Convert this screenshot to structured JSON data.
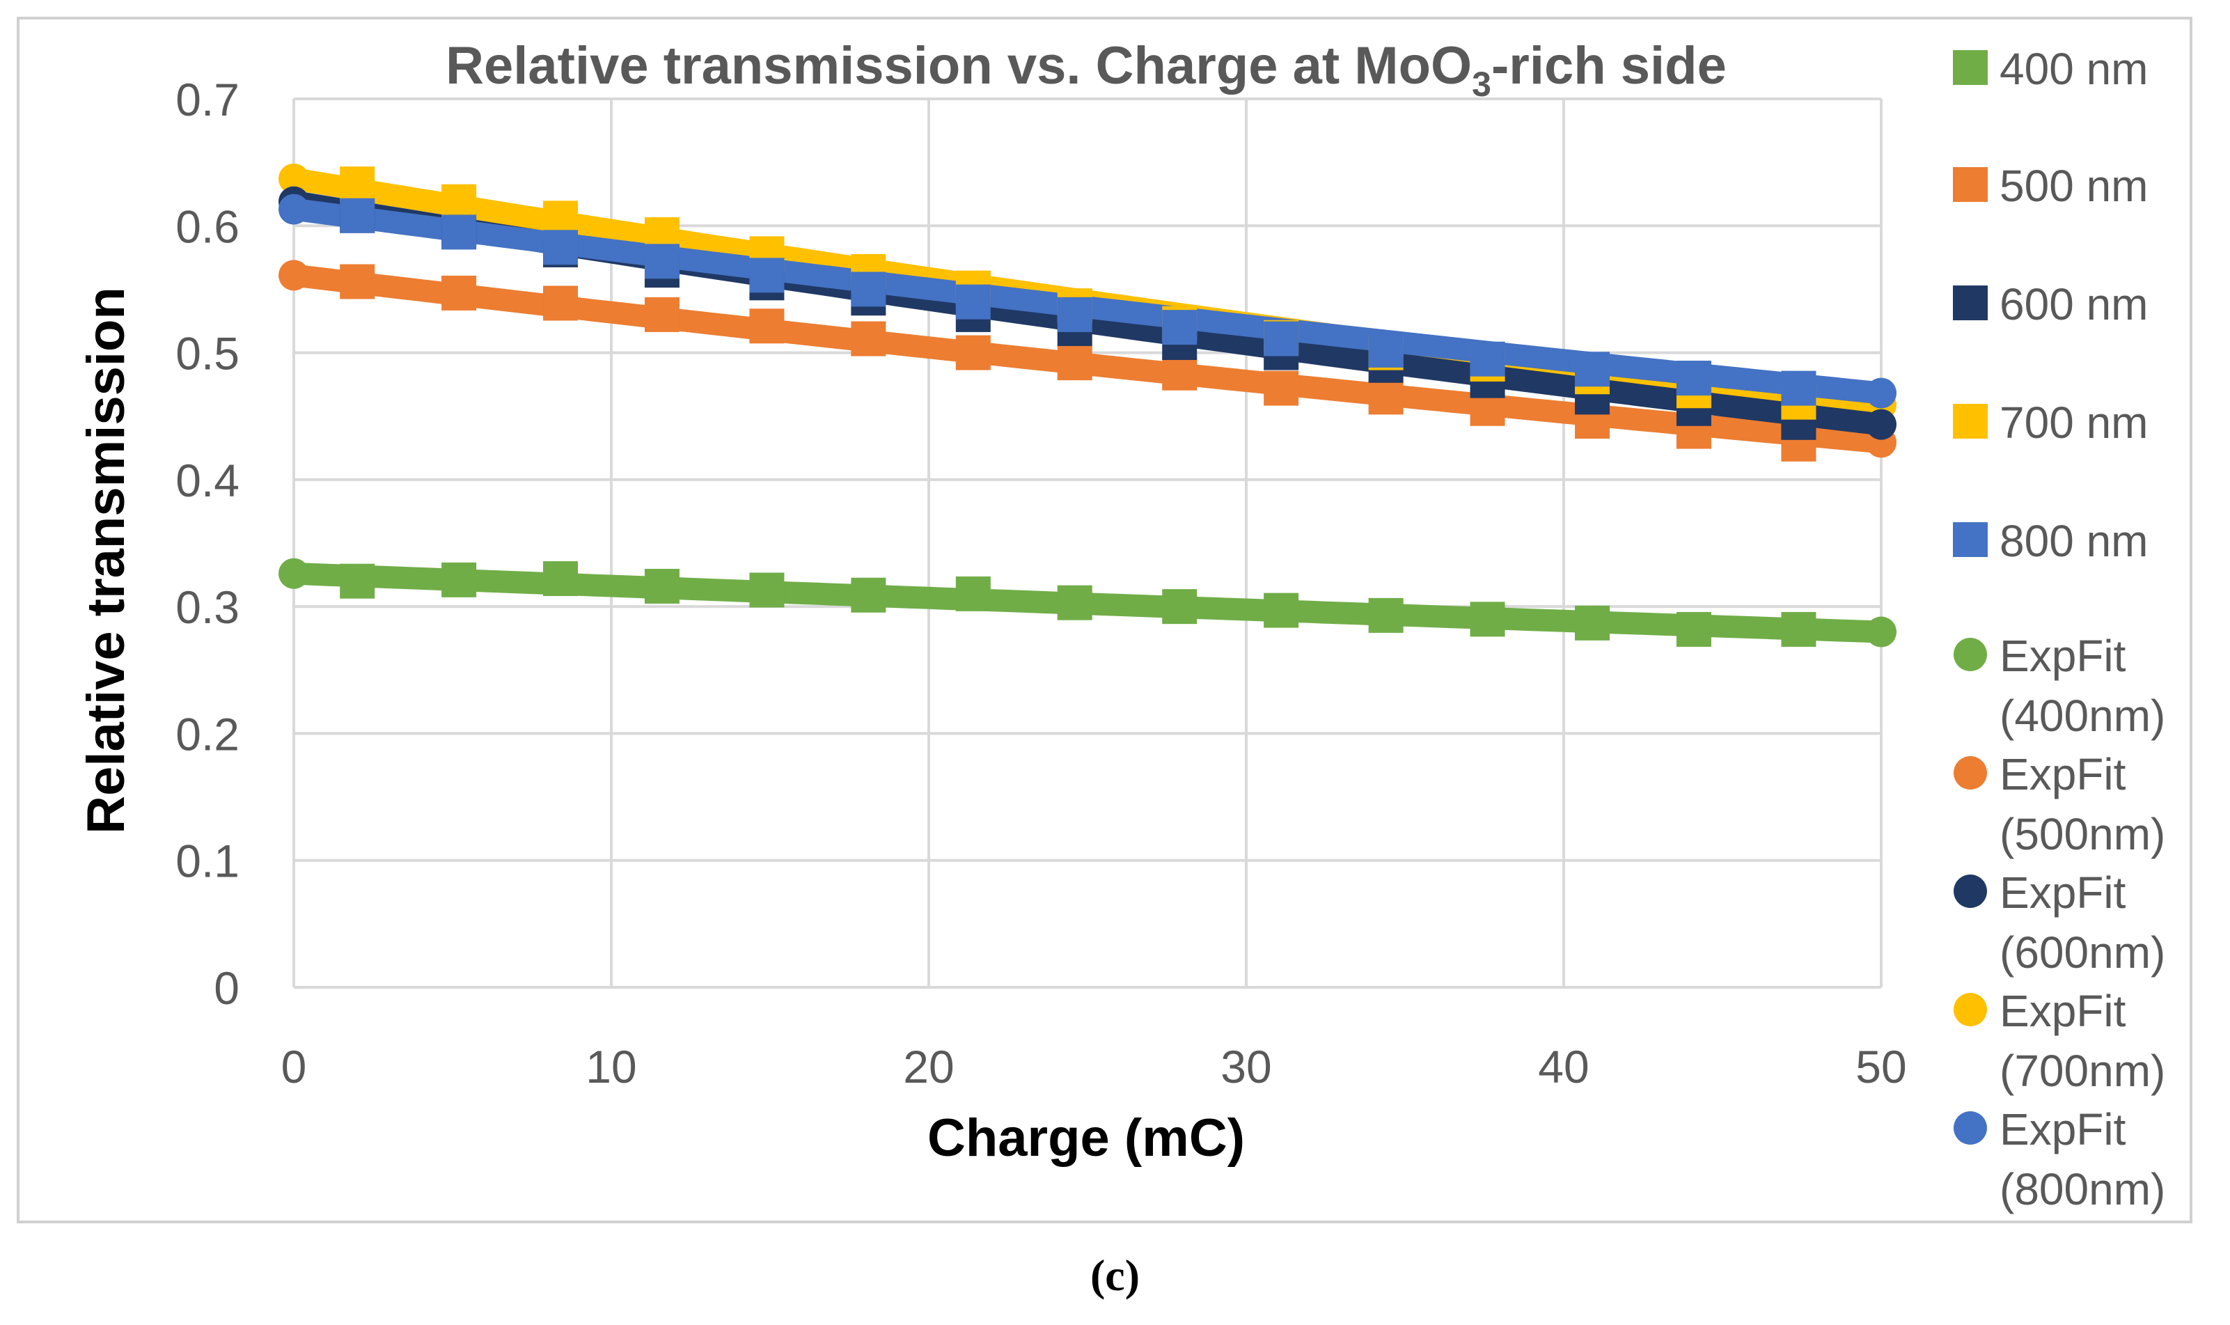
{
  "caption": "(c)",
  "chart_data": {
    "type": "scatter",
    "title": {
      "main": "Relative transmission vs. Charge at MoO",
      "sub": "3",
      "tail": "-rich side"
    },
    "xlabel": "Charge (mC)",
    "ylabel": "Relative transmission",
    "xlim": [
      0,
      50
    ],
    "ylim": [
      0,
      0.7
    ],
    "xticks": [
      0,
      10,
      20,
      30,
      40,
      50
    ],
    "yticks": [
      0,
      0.1,
      0.2,
      0.3,
      0.4,
      0.5,
      0.6,
      0.7
    ],
    "ytick_labels": [
      "0",
      "0.1",
      "0.2",
      "0.3",
      "0.4",
      "0.5",
      "0.6",
      "0.7"
    ],
    "grid": true,
    "legend_position": "right",
    "x": [
      2,
      5.2,
      8.4,
      11.6,
      14.9,
      18.1,
      21.4,
      24.6,
      27.9,
      31.1,
      34.4,
      37.6,
      40.9,
      44.1,
      47.4
    ],
    "series": [
      {
        "name": "400 nm",
        "marker": "square",
        "color": "#70ad47",
        "values": [
          0.32,
          0.321,
          0.322,
          0.316,
          0.313,
          0.309,
          0.31,
          0.303,
          0.3,
          0.297,
          0.293,
          0.29,
          0.287,
          0.282,
          0.282
        ]
      },
      {
        "name": "500 nm",
        "marker": "square",
        "color": "#ed7d31",
        "values": [
          0.556,
          0.547,
          0.539,
          0.53,
          0.521,
          0.511,
          0.5,
          0.492,
          0.484,
          0.472,
          0.465,
          0.456,
          0.446,
          0.438,
          0.428
        ]
      },
      {
        "name": "600 nm",
        "marker": "square",
        "color": "#203864",
        "values": [
          0.608,
          0.597,
          0.581,
          0.565,
          0.555,
          0.543,
          0.53,
          0.519,
          0.508,
          0.5,
          0.49,
          0.478,
          0.465,
          0.456,
          0.445
        ]
      },
      {
        "name": "700 nm",
        "marker": "square",
        "color": "#ffc000",
        "values": [
          0.633,
          0.619,
          0.606,
          0.593,
          0.578,
          0.564,
          0.551,
          0.537,
          0.523,
          0.512,
          0.5,
          0.491,
          0.481,
          0.47,
          0.461
        ]
      },
      {
        "name": "800 nm",
        "marker": "square",
        "color": "#4472c4",
        "values": [
          0.608,
          0.595,
          0.583,
          0.572,
          0.561,
          0.55,
          0.54,
          0.53,
          0.52,
          0.511,
          0.502,
          0.495,
          0.487,
          0.48,
          0.472
        ]
      }
    ],
    "fits": [
      {
        "name": "ExpFit (400nm)",
        "color": "#70ad47",
        "marker": "circle",
        "a": 0.326,
        "b": 0.00304
      },
      {
        "name": "ExpFit (500nm)",
        "color": "#ed7d31",
        "marker": "circle",
        "a": 0.561,
        "b": 0.00535
      },
      {
        "name": "ExpFit (600nm)",
        "color": "#203864",
        "marker": "circle",
        "a": 0.619,
        "b": 0.00667
      },
      {
        "name": "ExpFit (700nm)",
        "color": "#ffc000",
        "marker": "circle",
        "a": 0.637,
        "b": 0.00656
      },
      {
        "name": "ExpFit (800nm)",
        "color": "#4472c4",
        "marker": "circle",
        "a": 0.613,
        "b": 0.00539
      }
    ],
    "legend": [
      {
        "lines": [
          "400 nm"
        ],
        "marker": "square",
        "color": "#70ad47"
      },
      {
        "lines": [
          "500 nm"
        ],
        "marker": "square",
        "color": "#ed7d31"
      },
      {
        "lines": [
          "600 nm"
        ],
        "marker": "square",
        "color": "#203864"
      },
      {
        "lines": [
          "700 nm"
        ],
        "marker": "square",
        "color": "#ffc000"
      },
      {
        "lines": [
          "800 nm"
        ],
        "marker": "square",
        "color": "#4472c4"
      },
      {
        "lines": [
          "ExpFit",
          "(400nm)"
        ],
        "marker": "circle",
        "color": "#70ad47"
      },
      {
        "lines": [
          "ExpFit",
          "(500nm)"
        ],
        "marker": "circle",
        "color": "#ed7d31"
      },
      {
        "lines": [
          "ExpFit",
          "(600nm)"
        ],
        "marker": "circle",
        "color": "#203864"
      },
      {
        "lines": [
          "ExpFit",
          "(700nm)"
        ],
        "marker": "circle",
        "color": "#ffc000"
      },
      {
        "lines": [
          "ExpFit",
          "(800nm)"
        ],
        "marker": "circle",
        "color": "#4472c4"
      }
    ]
  }
}
